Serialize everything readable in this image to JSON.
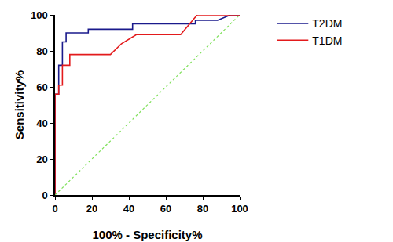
{
  "chart_data": {
    "type": "line",
    "x_label": "100% - Specificity%",
    "y_label": "Sensitivity%",
    "xlim": [
      0,
      100
    ],
    "ylim": [
      0,
      100
    ],
    "xticks": [
      0,
      20,
      40,
      60,
      80,
      100
    ],
    "yticks": [
      0,
      20,
      40,
      60,
      80,
      100
    ],
    "grid": false,
    "legend": "right",
    "series": [
      {
        "name": "T2DM",
        "color": "#1a1a8c",
        "line_style": "solid",
        "x": [
          0,
          0,
          2,
          2,
          4,
          4,
          6,
          6,
          10,
          10,
          18,
          18,
          42,
          42,
          76,
          76,
          88,
          95,
          100
        ],
        "values": [
          0,
          56,
          56,
          72,
          72,
          85,
          85,
          90,
          90,
          90,
          90,
          92,
          92,
          95,
          95,
          97,
          97,
          100,
          100
        ]
      },
      {
        "name": "T1DM",
        "color": "#e31a1c",
        "line_style": "solid",
        "x": [
          0,
          0,
          2,
          2,
          4,
          4,
          8,
          8,
          30,
          36,
          44,
          68,
          77,
          100
        ],
        "values": [
          0,
          56,
          56,
          61,
          61,
          72,
          72,
          78,
          78,
          84,
          89,
          89,
          100,
          100
        ]
      },
      {
        "color": "#7fe05a",
        "line_style": "dotted",
        "x": [
          0,
          100
        ],
        "values": [
          0,
          100
        ]
      }
    ]
  }
}
